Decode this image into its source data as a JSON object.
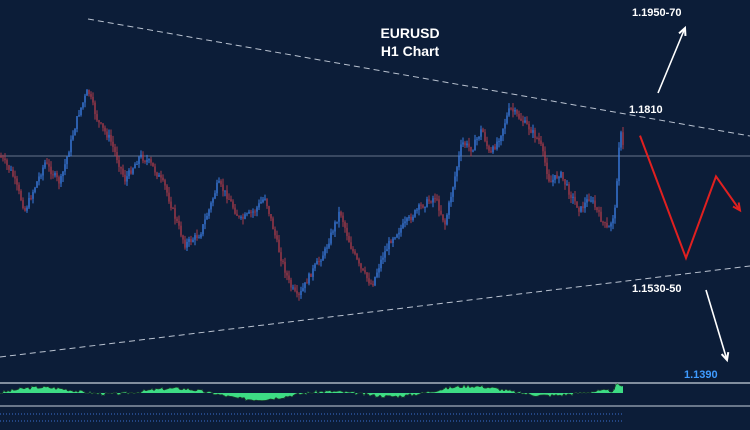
{
  "chart_data": {
    "type": "candlestick",
    "title": "EURUSD",
    "subtitle": "H1 Chart",
    "levels": [
      {
        "label": "1.1950-70",
        "value": 1.196,
        "kind": "target-up"
      },
      {
        "label": "1.1810",
        "value": 1.181,
        "kind": "resistance"
      },
      {
        "label": "1.1530-50",
        "value": 1.154,
        "kind": "support"
      },
      {
        "label": "1.1390",
        "value": 1.139,
        "kind": "target-down"
      }
    ],
    "price_path": [
      [
        0,
        1.1745
      ],
      [
        12,
        1.172
      ],
      [
        25,
        1.1665
      ],
      [
        45,
        1.1735
      ],
      [
        60,
        1.1705
      ],
      [
        70,
        1.176
      ],
      [
        78,
        1.1805
      ],
      [
        88,
        1.1842
      ],
      [
        98,
        1.1795
      ],
      [
        110,
        1.177
      ],
      [
        125,
        1.171
      ],
      [
        140,
        1.1745
      ],
      [
        150,
        1.1735
      ],
      [
        165,
        1.17
      ],
      [
        175,
        1.1655
      ],
      [
        185,
        1.1615
      ],
      [
        200,
        1.163
      ],
      [
        210,
        1.167
      ],
      [
        218,
        1.1705
      ],
      [
        228,
        1.1685
      ],
      [
        240,
        1.165
      ],
      [
        255,
        1.1665
      ],
      [
        265,
        1.1685
      ],
      [
        280,
        1.16
      ],
      [
        290,
        1.1555
      ],
      [
        298,
        1.1535
      ],
      [
        310,
        1.157
      ],
      [
        325,
        1.1605
      ],
      [
        340,
        1.1665
      ],
      [
        350,
        1.1615
      ],
      [
        360,
        1.158
      ],
      [
        372,
        1.1555
      ],
      [
        382,
        1.1595
      ],
      [
        392,
        1.1625
      ],
      [
        405,
        1.1645
      ],
      [
        420,
        1.167
      ],
      [
        435,
        1.1685
      ],
      [
        445,
        1.1645
      ],
      [
        455,
        1.1715
      ],
      [
        462,
        1.1765
      ],
      [
        472,
        1.1755
      ],
      [
        482,
        1.1785
      ],
      [
        490,
        1.1745
      ],
      [
        500,
        1.1775
      ],
      [
        510,
        1.1815
      ],
      [
        520,
        1.18
      ],
      [
        530,
        1.1785
      ],
      [
        540,
        1.1765
      ],
      [
        550,
        1.1705
      ],
      [
        560,
        1.172
      ],
      [
        570,
        1.169
      ],
      [
        580,
        1.1665
      ],
      [
        590,
        1.1685
      ],
      [
        600,
        1.1655
      ],
      [
        608,
        1.1635
      ],
      [
        615,
        1.1665
      ],
      [
        620,
        1.1785
      ],
      [
        624,
        1.175
      ]
    ],
    "forecast_path": [
      [
        640,
        1.1775
      ],
      [
        686,
        1.1595
      ],
      [
        716,
        1.1715
      ],
      [
        740,
        1.1665
      ]
    ],
    "colors": {
      "background": "#0c1d38",
      "bullish": "#3a7ce0",
      "bearish": "#a83a4a",
      "forecast": "#e02020",
      "oscillator": "#3ddc84",
      "level_text": "#ffffff",
      "target_down_text": "#3f9bff"
    }
  }
}
